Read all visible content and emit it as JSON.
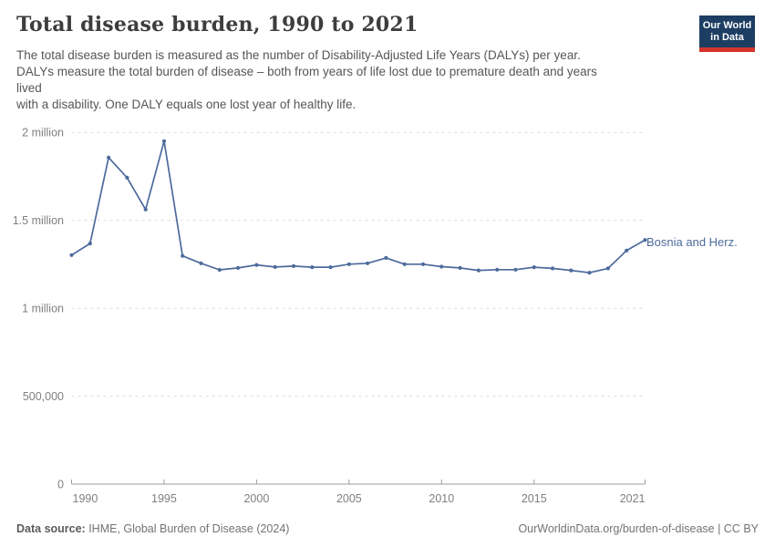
{
  "header": {
    "title": "Total disease burden, 1990 to 2021",
    "subtitle": "The total disease burden is measured as the number of Disability-Adjusted Life Years (DALYs) per year.\nDALYs measure the total burden of disease – both from years of life lost due to premature death and years\nlived\nwith a disability. One DALY equals one lost year of healthy life.",
    "logo": {
      "line1": "Our World",
      "line2": "in Data",
      "bg_color": "#1d3d63",
      "bar_color": "#d2352c"
    }
  },
  "footer": {
    "source_label": "Data source:",
    "source_text": " IHME, Global Burden of Disease (2024)",
    "link_text": "OurWorldinData.org/burden-of-disease | CC BY"
  },
  "chart_data": {
    "type": "line",
    "title": "Total disease burden, 1990 to 2021",
    "entity_label": "Bosnia and Herz.",
    "x": [
      1990,
      1991,
      1992,
      1993,
      1994,
      1995,
      1996,
      1997,
      1998,
      1999,
      2000,
      2001,
      2002,
      2003,
      2004,
      2005,
      2006,
      2007,
      2008,
      2009,
      2010,
      2011,
      2012,
      2013,
      2014,
      2015,
      2016,
      2017,
      2018,
      2019,
      2020,
      2021
    ],
    "series": [
      {
        "name": "Bosnia and Herz.",
        "color": "#4C6A9C",
        "values": [
          1303000,
          1369000,
          1858000,
          1743000,
          1562000,
          1951000,
          1298000,
          1256000,
          1219000,
          1230000,
          1247000,
          1235000,
          1240000,
          1234000,
          1234000,
          1251000,
          1256000,
          1287000,
          1251000,
          1251000,
          1237000,
          1230000,
          1216000,
          1220000,
          1220000,
          1234000,
          1227000,
          1216000,
          1203000,
          1227000,
          1329000,
          1389000
        ]
      }
    ],
    "xlabel": "",
    "ylabel": "",
    "xlim": [
      1990,
      2021
    ],
    "ylim": [
      0,
      2000000
    ],
    "yticks": [
      {
        "value": 0,
        "label": "0"
      },
      {
        "value": 500000,
        "label": "500,000"
      },
      {
        "value": 1000000,
        "label": "1 million"
      },
      {
        "value": 1500000,
        "label": "1.5 million"
      },
      {
        "value": 2000000,
        "label": "2 million"
      }
    ],
    "xticks": [
      {
        "value": 1990,
        "label": "1990"
      },
      {
        "value": 1995,
        "label": "1995"
      },
      {
        "value": 2000,
        "label": "2000"
      },
      {
        "value": 2005,
        "label": "2005"
      },
      {
        "value": 2010,
        "label": "2010"
      },
      {
        "value": 2015,
        "label": "2015"
      },
      {
        "value": 2021,
        "label": "2021"
      }
    ],
    "grid": "horizontal-dashed",
    "legend_position": "end-of-line-label",
    "colors": {
      "grid": "#dcdcdc",
      "axis": "#9c9c9c",
      "tick_text": "#7f7f7f"
    }
  }
}
